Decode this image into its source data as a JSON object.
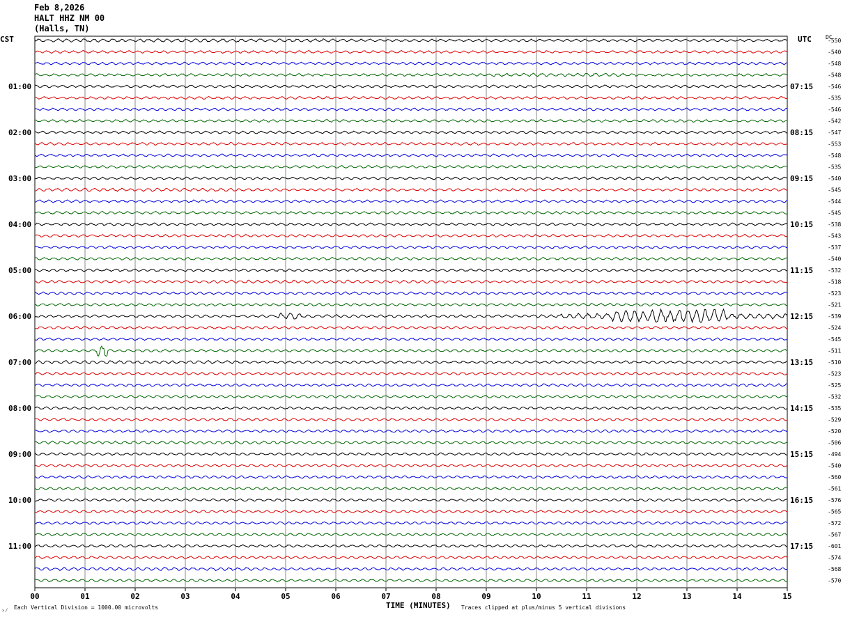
{
  "header": {
    "date": "Feb 8,2026",
    "station": "HALT HHZ NM 00",
    "location": "(Halls, TN)"
  },
  "left_timezone": "CST",
  "right_timezone": "UTC",
  "dc_label": "DC",
  "footer": {
    "scale_note": "Each Vertical Division = 1000.00 microvolts",
    "clip_note": "Traces clipped at plus/minus 5 vertical divisions",
    "corner_mark": "›⁄"
  },
  "colors": {
    "trace_cycle": [
      "#000000",
      "#dd0000",
      "#0000dd",
      "#006600"
    ],
    "grid": "#888888"
  },
  "chart_data": {
    "type": "line",
    "xlabel": "TIME (MINUTES)",
    "x_ticks": [
      "00",
      "01",
      "02",
      "03",
      "04",
      "05",
      "06",
      "07",
      "08",
      "09",
      "10",
      "11",
      "12",
      "13",
      "14",
      "15"
    ],
    "xlim": [
      0,
      15
    ],
    "left_hour_labels": [
      "01:00",
      "02:00",
      "03:00",
      "04:00",
      "05:00",
      "06:00",
      "07:00",
      "08:00",
      "09:00",
      "10:00",
      "11:00"
    ],
    "right_hour_labels": [
      "07:15",
      "08:15",
      "09:15",
      "10:15",
      "11:15",
      "12:15",
      "13:15",
      "14:15",
      "15:15",
      "16:15",
      "17:15"
    ],
    "dc_offsets": [
      -550,
      -540,
      -548,
      -548,
      -546,
      -535,
      -546,
      -542,
      -547,
      -553,
      -548,
      -535,
      -540,
      -545,
      -544,
      -545,
      -538,
      -543,
      -537,
      -540,
      -532,
      -518,
      -523,
      -521,
      -539,
      -524,
      -545,
      -511,
      -510,
      -523,
      -525,
      -532,
      -535,
      -529,
      -520,
      -506,
      -494,
      -540,
      -560,
      -561,
      -576,
      -565,
      -572,
      -567,
      -601,
      -574,
      -568,
      -570
    ],
    "series": [
      {
        "row": 0,
        "color": "black",
        "activity": [
          {
            "x_start": 0.0,
            "x_end": 6.0,
            "amplitude": 1.8
          }
        ]
      },
      {
        "row": 3,
        "color": "green",
        "activity": [
          {
            "x_start": 9.0,
            "x_end": 12.0,
            "amplitude": 1.8
          }
        ]
      },
      {
        "row": 12,
        "color": "black",
        "activity": [
          {
            "x_start": 11.5,
            "x_end": 15.0,
            "amplitude": 1.7
          }
        ]
      },
      {
        "row": 13,
        "color": "red",
        "activity": [
          {
            "x_start": 0.0,
            "x_end": 4.5,
            "amplitude": 1.7
          }
        ]
      },
      {
        "row": 14,
        "color": "blue",
        "activity": [
          {
            "x_start": 0.0,
            "x_end": 4.0,
            "amplitude": 1.5
          }
        ]
      },
      {
        "row": 21,
        "color": "red",
        "activity": [
          {
            "x_start": 3.0,
            "x_end": 8.0,
            "amplitude": 1.7
          }
        ]
      },
      {
        "row": 24,
        "color": "black",
        "activity": [
          {
            "x_start": 4.85,
            "x_end": 15.0,
            "amplitude": 3.0,
            "note": "earthquake"
          }
        ]
      },
      {
        "row": 27,
        "color": "green",
        "activity": [
          {
            "x_start": 1.25,
            "x_end": 1.45,
            "amplitude": 8.0
          }
        ]
      },
      {
        "row": 28,
        "color": "black",
        "activity": [
          {
            "x_start": 0.0,
            "x_end": 4.0,
            "amplitude": 1.8
          }
        ]
      },
      {
        "row": 30,
        "color": "blue",
        "activity": [
          {
            "x_start": 10.0,
            "x_end": 15.0,
            "amplitude": 1.5
          }
        ]
      },
      {
        "row": 35,
        "color": "green",
        "activity": [
          {
            "x_start": 0.0,
            "x_end": 5.0,
            "amplitude": 1.7
          }
        ]
      },
      {
        "row": 46,
        "color": "blue",
        "activity": [
          {
            "x_start": 0.0,
            "x_end": 5.0,
            "amplitude": 1.8
          }
        ]
      }
    ]
  }
}
